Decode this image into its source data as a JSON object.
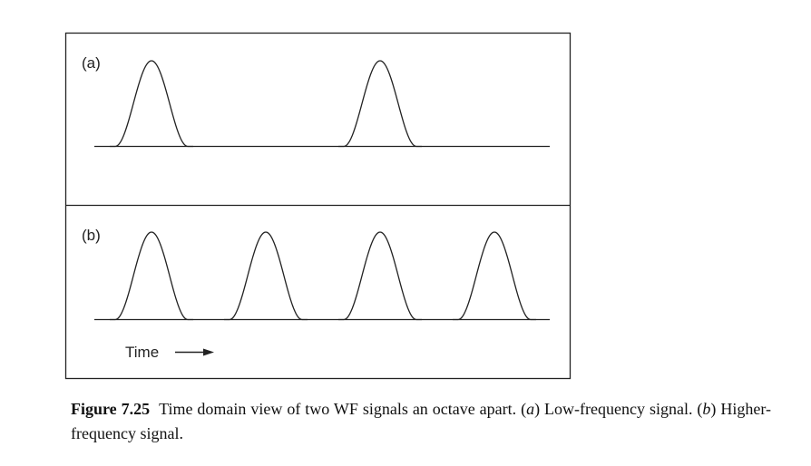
{
  "panels": [
    {
      "label": "(a)",
      "pulse_count": 2
    },
    {
      "label": "(b)",
      "pulse_count": 4
    }
  ],
  "time_axis_label": "Time",
  "arrow_icon": "right-arrow-icon",
  "line_color": "#222222",
  "caption": {
    "label": "Figure 7.25",
    "text_before_a": "Time domain view of two WF signals an octave apart. (",
    "a": "a",
    "text_after_a": ") Low-frequency signal. (",
    "b": "b",
    "text_after_b": ") Higher-frequency signal."
  }
}
